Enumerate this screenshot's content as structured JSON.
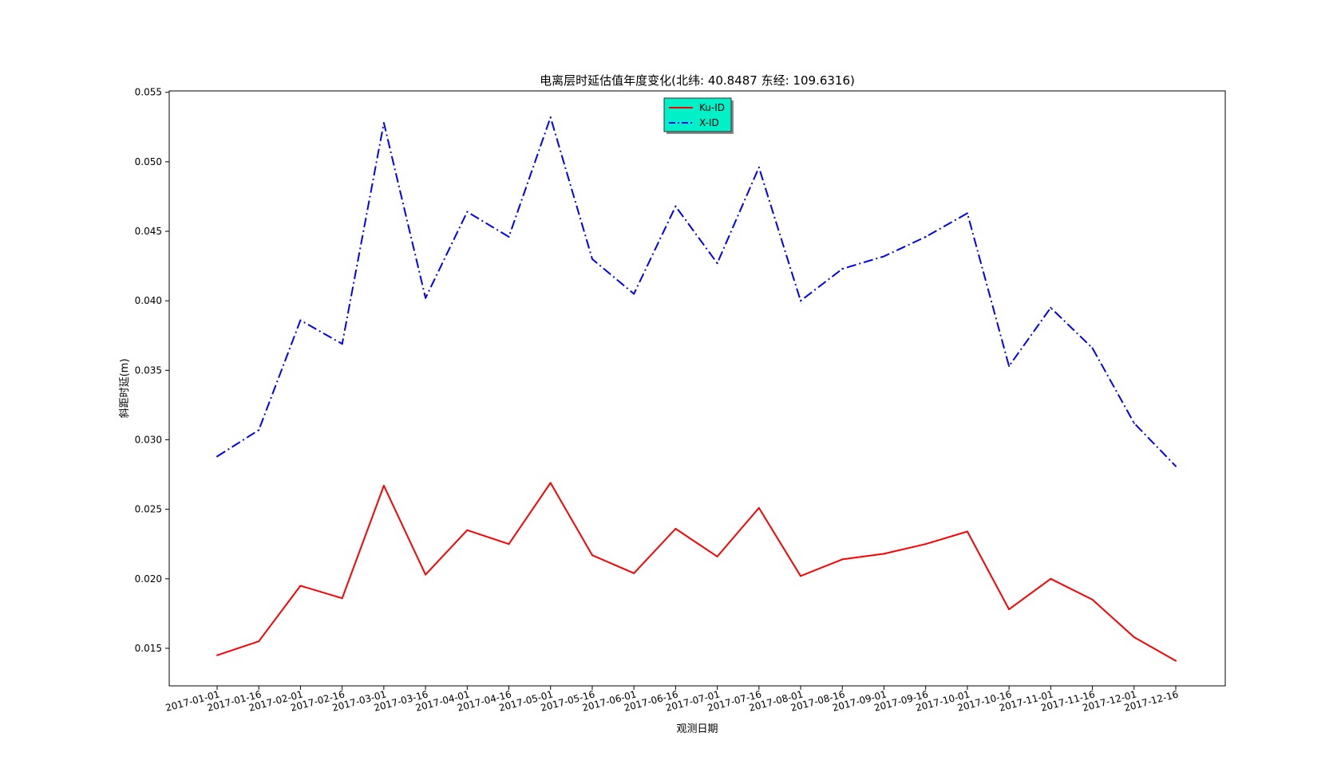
{
  "chart_data": {
    "type": "line",
    "title": "电离层时延估值年度变化(北纬: 40.8487 东经: 109.6316)",
    "xlabel": "观测日期",
    "ylabel": "斜距时延(m)",
    "categories": [
      "2017-01-01",
      "2017-01-16",
      "2017-02-01",
      "2017-02-16",
      "2017-03-01",
      "2017-03-16",
      "2017-04-01",
      "2017-04-16",
      "2017-05-01",
      "2017-05-16",
      "2017-06-01",
      "2017-06-16",
      "2017-07-01",
      "2017-07-16",
      "2017-08-01",
      "2017-08-16",
      "2017-09-01",
      "2017-09-16",
      "2017-10-01",
      "2017-10-16",
      "2017-11-01",
      "2017-11-16",
      "2017-12-01",
      "2017-12-16"
    ],
    "yticks": [
      "0.015",
      "0.020",
      "0.025",
      "0.030",
      "0.035",
      "0.040",
      "0.045",
      "0.050",
      "0.055"
    ],
    "ylim": [
      0.0123,
      0.0551
    ],
    "series": [
      {
        "name": "Ku-ID",
        "color": "#ff0000",
        "linestyle": "solid",
        "values": [
          0.0145,
          0.0155,
          0.0195,
          0.0186,
          0.0267,
          0.0203,
          0.0235,
          0.0225,
          0.0269,
          0.0217,
          0.0204,
          0.0236,
          0.0216,
          0.0251,
          0.0202,
          0.0214,
          0.0218,
          0.0225,
          0.0234,
          0.0178,
          0.02,
          0.0185,
          0.0158,
          0.0141
        ]
      },
      {
        "name": "X-ID",
        "color": "#0000ff",
        "linestyle": "dashdot",
        "values": [
          0.0288,
          0.0307,
          0.0386,
          0.0369,
          0.0528,
          0.0402,
          0.0464,
          0.0446,
          0.0532,
          0.043,
          0.0405,
          0.0468,
          0.0427,
          0.0496,
          0.04,
          0.0423,
          0.0432,
          0.0446,
          0.0463,
          0.0353,
          0.0395,
          0.0366,
          0.0312,
          0.0281
        ]
      }
    ],
    "legend": {
      "location": "upper center",
      "background": "#00f0c8"
    },
    "grid": false
  }
}
